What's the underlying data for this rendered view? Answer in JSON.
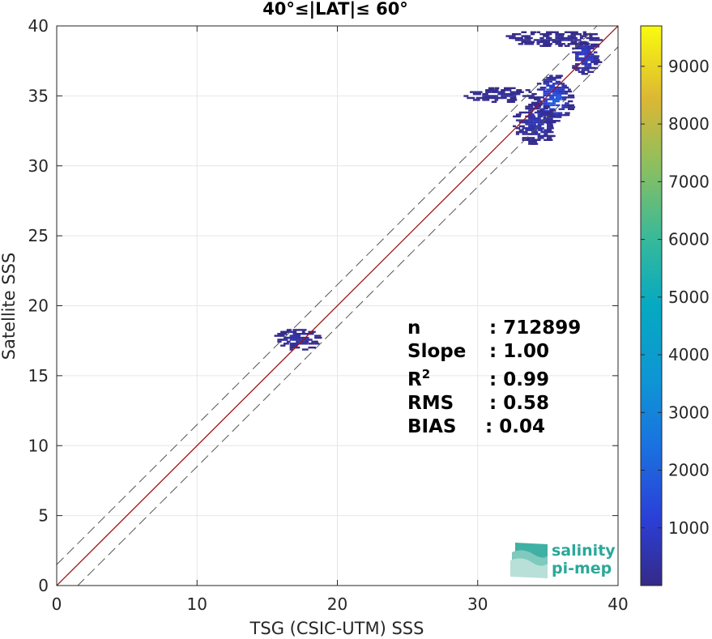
{
  "chart_data": {
    "type": "heatmap",
    "title": "40°≤|LAT|≤ 60°",
    "xlabel": "TSG (CSIC-UTM) SSS",
    "ylabel": "Satellite SSS",
    "xlim": [
      0,
      40
    ],
    "ylim": [
      0,
      40
    ],
    "xticks": [
      "0",
      "10",
      "20",
      "30",
      "40"
    ],
    "yticks": [
      "0",
      "5",
      "10",
      "15",
      "20",
      "25",
      "30",
      "35",
      "40"
    ],
    "grid": true,
    "colorbar": {
      "range": [
        0,
        9700
      ],
      "ticks": [
        "1000",
        "2000",
        "3000",
        "4000",
        "5000",
        "6000",
        "7000",
        "8000",
        "9000"
      ],
      "colormap": "parula"
    },
    "reference_lines": [
      {
        "name": "1:1",
        "slope": 1,
        "intercept": 0,
        "color": "#a01414",
        "style": "solid"
      },
      {
        "slope": 1,
        "intercept": 1.5,
        "color": "#555555",
        "style": "dashed"
      },
      {
        "slope": 1,
        "intercept": -1.5,
        "color": "#555555",
        "style": "dashed"
      }
    ],
    "density_clusters": [
      {
        "x": [
          34.0,
          36.5
        ],
        "y": [
          33.0,
          36.5
        ],
        "peak_count": 2600
      },
      {
        "x": [
          36.5,
          38.5
        ],
        "y": [
          36.5,
          39.0
        ],
        "peak_count": 1500
      },
      {
        "x": [
          32.5,
          35.5
        ],
        "y": [
          31.5,
          34.5
        ],
        "peak_count": 900
      },
      {
        "x": [
          15.5,
          18.5
        ],
        "y": [
          16.8,
          18.3
        ],
        "peak_count": 700
      },
      {
        "x": [
          29.0,
          34.0
        ],
        "y": [
          34.5,
          35.5
        ],
        "peak_count": 400
      },
      {
        "x": [
          32.0,
          38.5
        ],
        "y": [
          38.5,
          39.6
        ],
        "peak_count": 300
      }
    ],
    "stats": [
      {
        "label": "n",
        "value": ": 712899"
      },
      {
        "label": "Slope",
        "value": ": 1.00"
      },
      {
        "label": "R",
        "label_sup": "2",
        "value": ": 0.99"
      },
      {
        "label": "RMS",
        "value": ": 0.58"
      },
      {
        "label": "BIAS",
        "value": ": 0.04"
      }
    ]
  },
  "logo": {
    "line1": "salinity",
    "line2": "pi-mep"
  },
  "colors": {
    "identity_line": "#a01414",
    "dashed_line": "#555555",
    "logo": "#2aa89a",
    "axis": "#262626"
  }
}
